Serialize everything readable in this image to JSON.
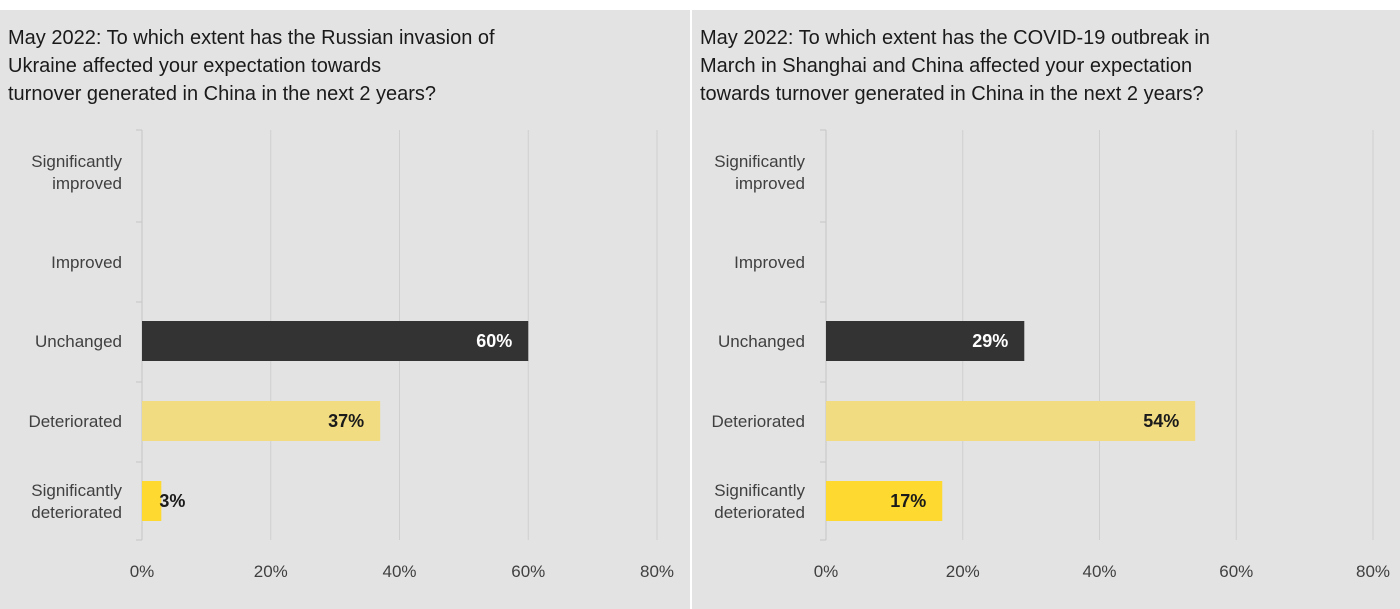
{
  "colors": {
    "panel_bg": "#e3e3e3",
    "grid": "#cfcfcf",
    "dark": "#333333",
    "light_yellow": "#f2dc82",
    "yellow": "#fed92f"
  },
  "chart_data": [
    {
      "type": "bar",
      "orientation": "horizontal",
      "title": "May 2022: To which extent has the Russian invasion of Ukraine affected your expectation towards turnover generated in China in the next 2 years?",
      "title_lines": [
        "May 2022: To which extent has the Russian invasion of",
        "Ukraine affected your expectation towards",
        "turnover generated in China in the next 2 years?"
      ],
      "categories": [
        "Significantly improved",
        "Improved",
        "Unchanged",
        "Deteriorated",
        "Significantly deteriorated"
      ],
      "category_lines": [
        [
          "Significantly",
          "improved"
        ],
        [
          "Improved"
        ],
        [
          "Unchanged"
        ],
        [
          "Deteriorated"
        ],
        [
          "Significantly",
          "deteriorated"
        ]
      ],
      "values": [
        null,
        null,
        60,
        37,
        3
      ],
      "labels": [
        "",
        "",
        "60%",
        "37%",
        "3%"
      ],
      "bar_colors": [
        "#333333",
        "#333333",
        "#333333",
        "#f2dc82",
        "#fed92f"
      ],
      "label_colors": [
        "#ffffff",
        "#ffffff",
        "#ffffff",
        "#1a1a1a",
        "#1a1a1a"
      ],
      "xlim": [
        0,
        80
      ],
      "xticks": [
        0,
        20,
        40,
        60,
        80
      ],
      "xtick_labels": [
        "0%",
        "20%",
        "40%",
        "60%",
        "80%"
      ],
      "grid": true
    },
    {
      "type": "bar",
      "orientation": "horizontal",
      "title": "May 2022: To which extent has the COVID-19 outbreak in March in Shanghai and China affected your expectation towards turnover generated in China in the next 2 years?",
      "title_lines": [
        "May 2022: To which extent has the COVID-19 outbreak in",
        "March in Shanghai and China affected your expectation",
        "towards turnover generated in China in the next 2 years?"
      ],
      "categories": [
        "Significantly improved",
        "Improved",
        "Unchanged",
        "Deteriorated",
        "Significantly deteriorated"
      ],
      "category_lines": [
        [
          "Significantly",
          "improved"
        ],
        [
          "Improved"
        ],
        [
          "Unchanged"
        ],
        [
          "Deteriorated"
        ],
        [
          "Significantly",
          "deteriorated"
        ]
      ],
      "values": [
        null,
        null,
        29,
        54,
        17
      ],
      "labels": [
        "",
        "",
        "29%",
        "54%",
        "17%"
      ],
      "bar_colors": [
        "#333333",
        "#333333",
        "#333333",
        "#f2dc82",
        "#fed92f"
      ],
      "label_colors": [
        "#ffffff",
        "#ffffff",
        "#ffffff",
        "#1a1a1a",
        "#1a1a1a"
      ],
      "xlim": [
        0,
        80
      ],
      "xticks": [
        0,
        20,
        40,
        60,
        80
      ],
      "xtick_labels": [
        "0%",
        "20%",
        "40%",
        "60%",
        "80%"
      ],
      "grid": true
    }
  ]
}
